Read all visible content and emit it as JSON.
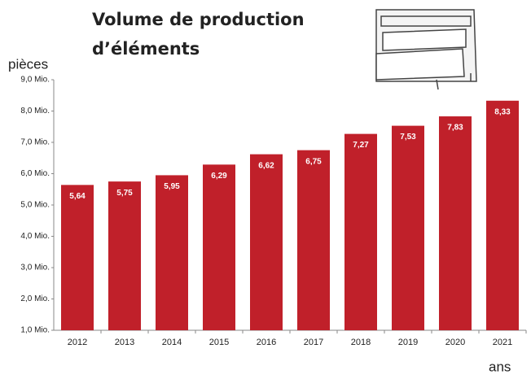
{
  "chart_data": {
    "type": "bar",
    "title": "Volume de production d’éléments",
    "y_label": "pièces",
    "x_label": "ans",
    "categories": [
      "2012",
      "2013",
      "2014",
      "2015",
      "2016",
      "2017",
      "2018",
      "2019",
      "2020",
      "2021"
    ],
    "values": [
      5.64,
      5.75,
      5.95,
      6.29,
      6.62,
      6.75,
      7.27,
      7.53,
      7.83,
      8.33
    ],
    "value_labels": [
      "5,64",
      "5,75",
      "5,95",
      "6,29",
      "6,62",
      "6,75",
      "7,27",
      "7,53",
      "7,83",
      "8,33"
    ],
    "color": "#c0202a",
    "ylim": [
      1,
      9
    ],
    "yticks": [
      {
        "value": 1,
        "label": "1,0 Mio."
      },
      {
        "value": 2,
        "label": "2,0 Mio."
      },
      {
        "value": 3,
        "label": "3,0 Mio."
      },
      {
        "value": 4,
        "label": "4,0 Mio."
      },
      {
        "value": 5,
        "label": "5,0 Mio."
      },
      {
        "value": 6,
        "label": "6,0 Mio."
      },
      {
        "value": 7,
        "label": "7,0 Mio."
      },
      {
        "value": 8,
        "label": "8,0 Mio."
      },
      {
        "value": 9,
        "label": "9,0 Mio."
      }
    ]
  }
}
